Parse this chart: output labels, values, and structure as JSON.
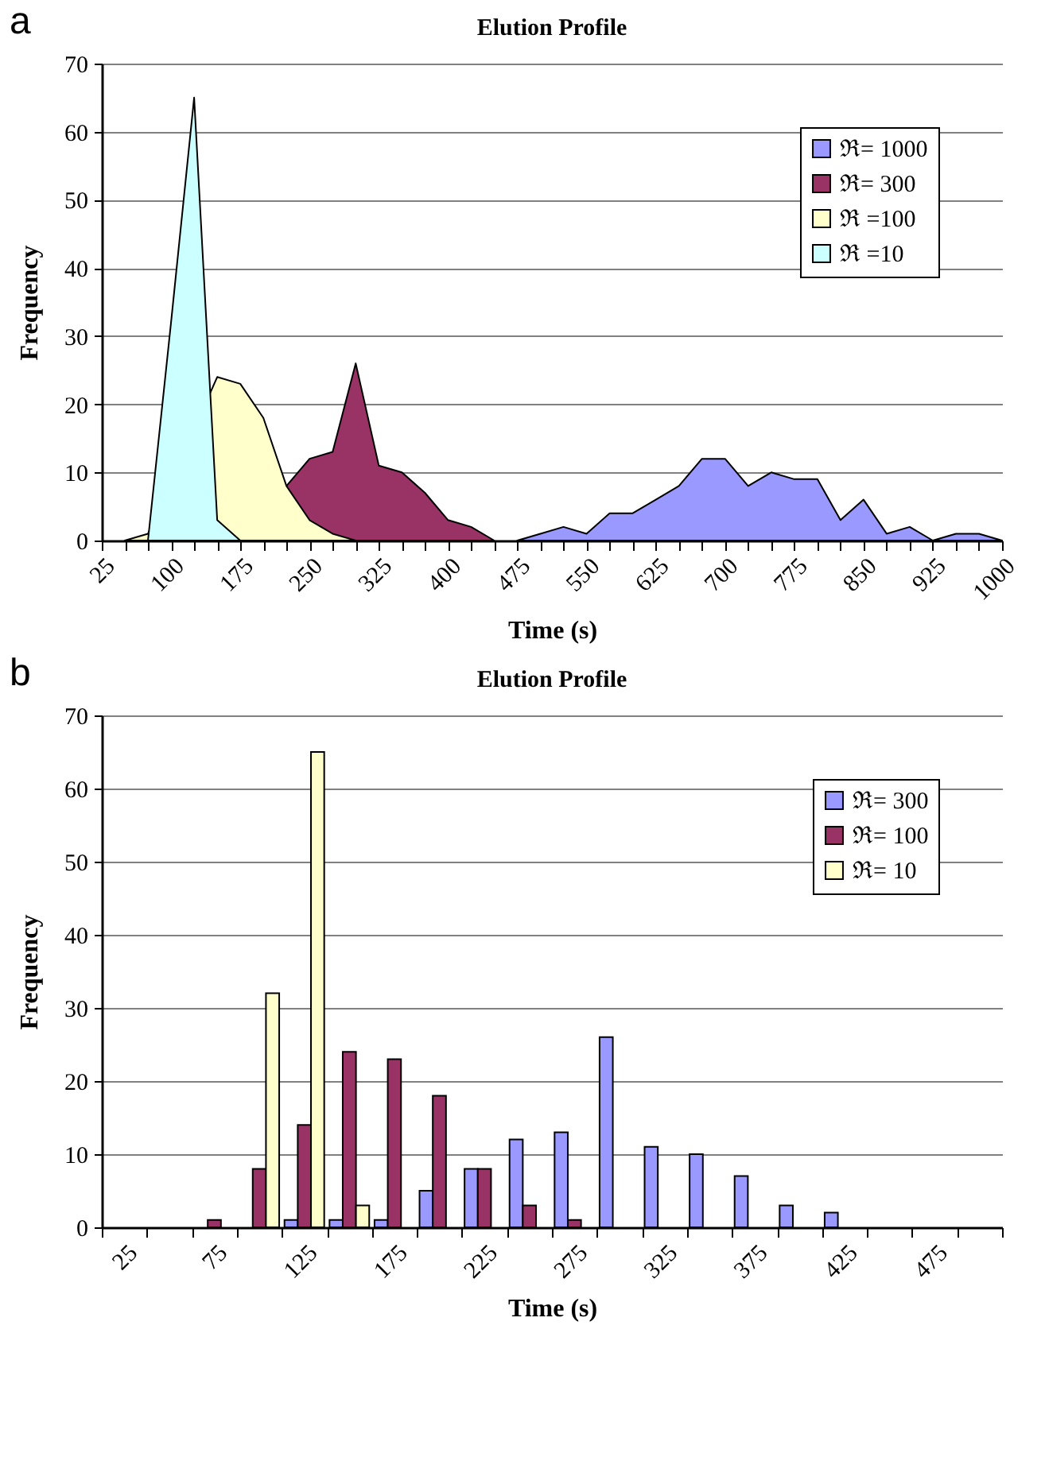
{
  "chart_data": [
    {
      "type": "area",
      "title": "Elution Profile",
      "xlabel": "Time (s)",
      "ylabel": "Frequency",
      "annotations": [
        "a"
      ],
      "categories": [
        "25",
        null,
        null,
        "100",
        null,
        null,
        "175",
        null,
        null,
        "250",
        null,
        null,
        "325",
        null,
        null,
        "400",
        null,
        null,
        "475",
        null,
        null,
        "550",
        null,
        null,
        "625",
        null,
        null,
        "700",
        null,
        null,
        "775",
        null,
        null,
        "850",
        null,
        null,
        "925",
        null,
        null,
        "1000"
      ],
      "series": [
        {
          "name": "ℜ= 1000",
          "color": "#9999ff",
          "values": [
            null,
            null,
            null,
            null,
            null,
            null,
            null,
            null,
            null,
            null,
            null,
            null,
            null,
            null,
            null,
            null,
            null,
            null,
            0,
            1,
            2,
            1,
            4,
            4,
            6,
            8,
            12,
            12,
            8,
            10,
            9,
            9,
            3,
            6,
            1,
            2,
            0,
            1,
            1,
            0
          ]
        },
        {
          "name": "ℜ= 300",
          "color": "#993366",
          "values": [
            null,
            null,
            null,
            null,
            null,
            null,
            null,
            null,
            8,
            12,
            13,
            26,
            11,
            10,
            7,
            3,
            2,
            0,
            null,
            null,
            null,
            null,
            null,
            null,
            null,
            null,
            null,
            null,
            null,
            null,
            null,
            null,
            null,
            null,
            null,
            null,
            null,
            null,
            null,
            null
          ]
        },
        {
          "name": "ℜ =100",
          "color": "#ffffcc",
          "values": [
            null,
            0,
            1,
            null,
            null,
            24,
            23,
            18,
            8,
            3,
            1,
            0,
            null,
            null,
            null,
            null,
            null,
            null,
            null,
            null,
            null,
            null,
            null,
            null,
            null,
            null,
            null,
            null,
            null,
            null,
            null,
            null,
            null,
            null,
            null,
            null,
            null,
            null,
            null,
            null
          ]
        },
        {
          "name": "ℜ =10",
          "color": "#ccffff",
          "values": [
            null,
            null,
            0,
            32,
            65,
            3,
            0,
            null,
            null,
            null,
            null,
            null,
            null,
            null,
            null,
            null,
            null,
            null,
            null,
            null,
            null,
            null,
            null,
            null,
            null,
            null,
            null,
            null,
            null,
            null,
            null,
            null,
            null,
            null,
            null,
            null,
            null,
            null,
            null,
            null
          ]
        }
      ],
      "ylim": [
        0,
        70
      ],
      "yticks": [
        0,
        10,
        20,
        30,
        40,
        50,
        60,
        70
      ],
      "grid": "y",
      "legend": "top right"
    },
    {
      "type": "bar",
      "title": "Elution Profile",
      "xlabel": "Time (s)",
      "ylabel": "Frequency",
      "annotations": [
        "b"
      ],
      "categories": [
        "25",
        null,
        "75",
        null,
        "125",
        null,
        "175",
        null,
        "225",
        null,
        "275",
        null,
        "325",
        null,
        "375",
        null,
        "425",
        null,
        "475",
        null
      ],
      "series": [
        {
          "name": "ℜ= 300",
          "color": "#9999ff",
          "values": [
            null,
            null,
            null,
            null,
            1,
            1,
            1,
            5,
            8,
            12,
            13,
            26,
            11,
            10,
            7,
            3,
            2,
            null,
            null,
            null
          ]
        },
        {
          "name": "ℜ= 100",
          "color": "#993366",
          "values": [
            null,
            null,
            1,
            8,
            14,
            24,
            23,
            18,
            8,
            3,
            1,
            null,
            null,
            null,
            null,
            null,
            null,
            null,
            null,
            null
          ]
        },
        {
          "name": "ℜ= 10",
          "color": "#ffffcc",
          "values": [
            null,
            null,
            null,
            32,
            65,
            3,
            null,
            null,
            null,
            null,
            null,
            null,
            null,
            null,
            null,
            null,
            null,
            null,
            null,
            null
          ]
        }
      ],
      "ylim": [
        0,
        70
      ],
      "yticks": [
        0,
        10,
        20,
        30,
        40,
        50,
        60,
        70
      ],
      "grid": "y",
      "legend": "top right"
    }
  ]
}
